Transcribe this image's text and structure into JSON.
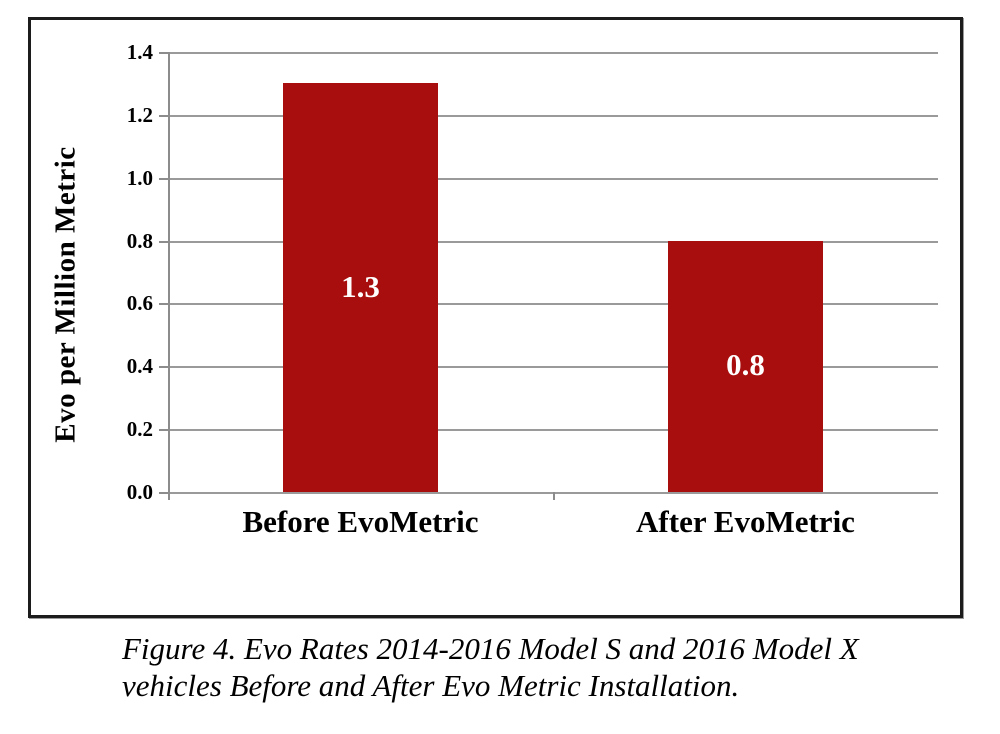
{
  "figure": {
    "caption_line1": "Figure 4. Evo Rates 2014-2016 Model S and 2016 Model X",
    "caption_line2": "vehicles Before and After Evo Metric Installation."
  },
  "chart_data": {
    "type": "bar",
    "title": "",
    "categories": [
      "Before EvoMetric",
      "After EvoMetric"
    ],
    "values": [
      1.3,
      0.8
    ],
    "value_labels": [
      "1.3",
      "0.8"
    ],
    "xlabel": "",
    "ylabel": "Evo per Million Metric",
    "ylim": [
      0.0,
      1.4
    ],
    "ytick_step": 0.2,
    "ytick_labels": [
      "0.0",
      "0.2",
      "0.4",
      "0.6",
      "0.8",
      "1.0",
      "1.2",
      "1.4"
    ],
    "grid": "horizontal-major-on",
    "legend": "none",
    "colors": {
      "bar": "#a90e0e",
      "bar_value_text": "#ffffff",
      "gridline": "#9a9a9a",
      "axis": "#8c8c8c",
      "text": "#000000",
      "frame_border": "#1c1c1c"
    }
  }
}
